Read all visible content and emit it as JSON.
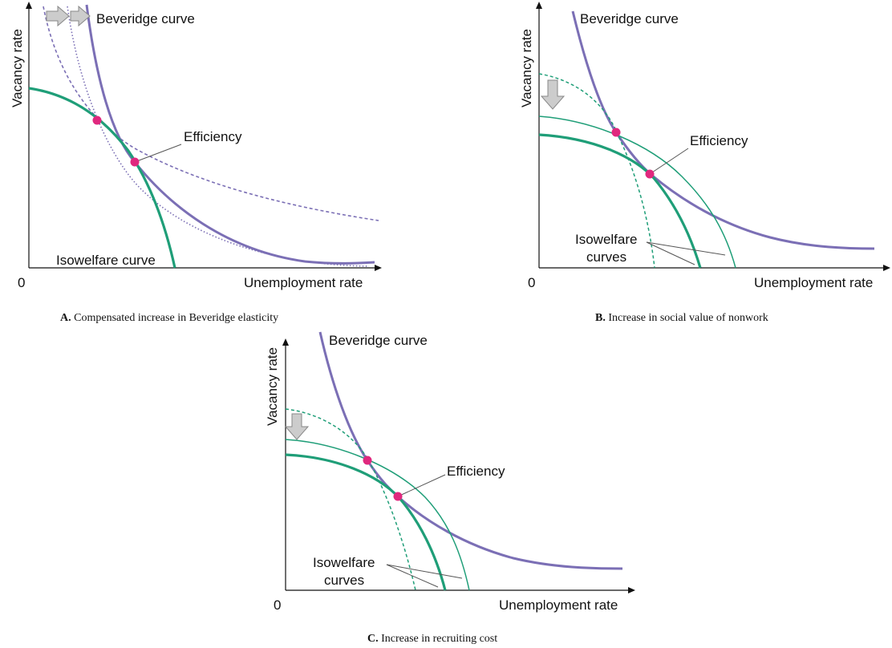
{
  "panels": {
    "a": {
      "caption_letter": "A.",
      "caption_text": "Compensated increase in Beveridge elasticity",
      "ylabel": "Vacancy rate",
      "xlabel": "Unemployment rate",
      "origin": "0",
      "beveridge_label": "Beveridge curve",
      "efficiency_label": "Efficiency",
      "isowelfare_label": "Isowelfare curve"
    },
    "b": {
      "caption_letter": "B.",
      "caption_text": "Increase in social value of nonwork",
      "ylabel": "Vacancy rate",
      "xlabel": "Unemployment rate",
      "origin": "0",
      "beveridge_label": "Beveridge curve",
      "efficiency_label": "Efficiency",
      "isowelfare_label_1": "Isowelfare",
      "isowelfare_label_2": "curves"
    },
    "c": {
      "caption_letter": "C.",
      "caption_text": "Increase in recruiting cost",
      "ylabel": "Vacancy rate",
      "xlabel": "Unemployment rate",
      "origin": "0",
      "beveridge_label": "Beveridge curve",
      "efficiency_label": "Efficiency",
      "isowelfare_label_1": "Isowelfare",
      "isowelfare_label_2": "curves"
    }
  },
  "colors": {
    "beveridge": "#7b6fb5",
    "isowelfare": "#1f9e78",
    "efficiency_point": "#e0287e",
    "shift_arrow": "#cccccc"
  }
}
